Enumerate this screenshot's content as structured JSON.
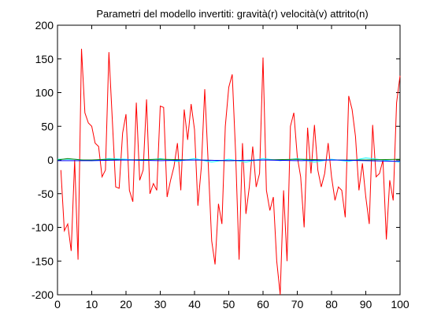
{
  "chart_data": {
    "type": "line",
    "title": "Parametri del modello invertiti: gravità(r) velocità(v) attrito(n)",
    "xlabel": "",
    "ylabel": "",
    "xlim": [
      0,
      100
    ],
    "ylim": [
      -200,
      200
    ],
    "xticks": [
      0,
      10,
      20,
      30,
      40,
      50,
      60,
      70,
      80,
      90,
      100
    ],
    "yticks": [
      200,
      150,
      100,
      50,
      0,
      -50,
      -100,
      -150,
      -200
    ],
    "grid": false,
    "legend": "none",
    "series": [
      {
        "color": "#ff0000",
        "x": [
          1,
          2,
          3,
          4,
          5,
          6,
          7,
          8,
          9,
          10,
          11,
          12,
          13,
          14,
          15,
          16,
          17,
          18,
          19,
          20,
          21,
          22,
          23,
          24,
          25,
          26,
          27,
          28,
          29,
          30,
          31,
          32,
          33,
          34,
          35,
          36,
          37,
          38,
          39,
          40,
          41,
          42,
          43,
          44,
          45,
          46,
          47,
          48,
          49,
          50,
          51,
          52,
          53,
          54,
          55,
          56,
          57,
          58,
          59,
          60,
          61,
          62,
          63,
          64,
          65,
          66,
          67,
          68,
          69,
          70,
          71,
          72,
          73,
          74,
          75,
          76,
          77,
          78,
          79,
          80,
          81,
          82,
          83,
          84,
          85,
          86,
          87,
          88,
          89,
          90,
          91,
          92,
          93,
          94,
          95,
          96,
          97,
          98,
          99,
          100
        ],
        "values": [
          -15,
          -105,
          -95,
          -135,
          0,
          -148,
          165,
          70,
          55,
          50,
          25,
          20,
          -25,
          -15,
          160,
          60,
          -40,
          -42,
          40,
          68,
          -45,
          -62,
          85,
          -30,
          -15,
          90,
          -50,
          -35,
          -45,
          80,
          78,
          -55,
          -30,
          -10,
          25,
          -45,
          75,
          30,
          83,
          45,
          -68,
          -10,
          105,
          -5,
          -120,
          -155,
          -65,
          -95,
          50,
          108,
          127,
          10,
          -148,
          25,
          -80,
          -40,
          20,
          -40,
          -20,
          152,
          -45,
          -75,
          -55,
          -150,
          -200,
          -45,
          -150,
          50,
          70,
          5,
          -25,
          -100,
          48,
          -20,
          52,
          -15,
          -40,
          -20,
          25,
          -25,
          -60,
          -40,
          -45,
          -85,
          95,
          75,
          35,
          -45,
          -5,
          -55,
          -95,
          52,
          -25,
          -20,
          0,
          -118,
          -30,
          -60,
          85,
          125
        ],
        "smooth_values_approx": true
      },
      {
        "color": "#00ffff",
        "x": [
          0,
          5,
          10,
          15,
          20,
          25,
          30,
          35,
          40,
          45,
          50,
          55,
          60,
          65,
          70,
          75,
          80,
          85,
          90,
          95,
          100
        ],
        "values": [
          1,
          1,
          -1,
          2,
          1,
          -1,
          2,
          -2,
          2,
          -3,
          1,
          -3,
          2,
          -1,
          2,
          -3,
          1,
          -2,
          3,
          0,
          -3
        ]
      },
      {
        "color": "#008000",
        "x": [
          0,
          3,
          5,
          7,
          10,
          15,
          20,
          30,
          40,
          50,
          60,
          70,
          80,
          90,
          100
        ],
        "values": [
          0,
          2,
          1,
          0,
          0,
          1,
          0,
          1,
          0,
          -1,
          0,
          1,
          0,
          0,
          1
        ]
      },
      {
        "color": "#0000ff",
        "x": [
          0,
          10,
          20,
          30,
          40,
          50,
          60,
          70,
          80,
          90,
          100
        ],
        "values": [
          -1,
          -1,
          0,
          -1,
          0,
          -1,
          0,
          -1,
          0,
          -1,
          -2
        ]
      }
    ]
  }
}
